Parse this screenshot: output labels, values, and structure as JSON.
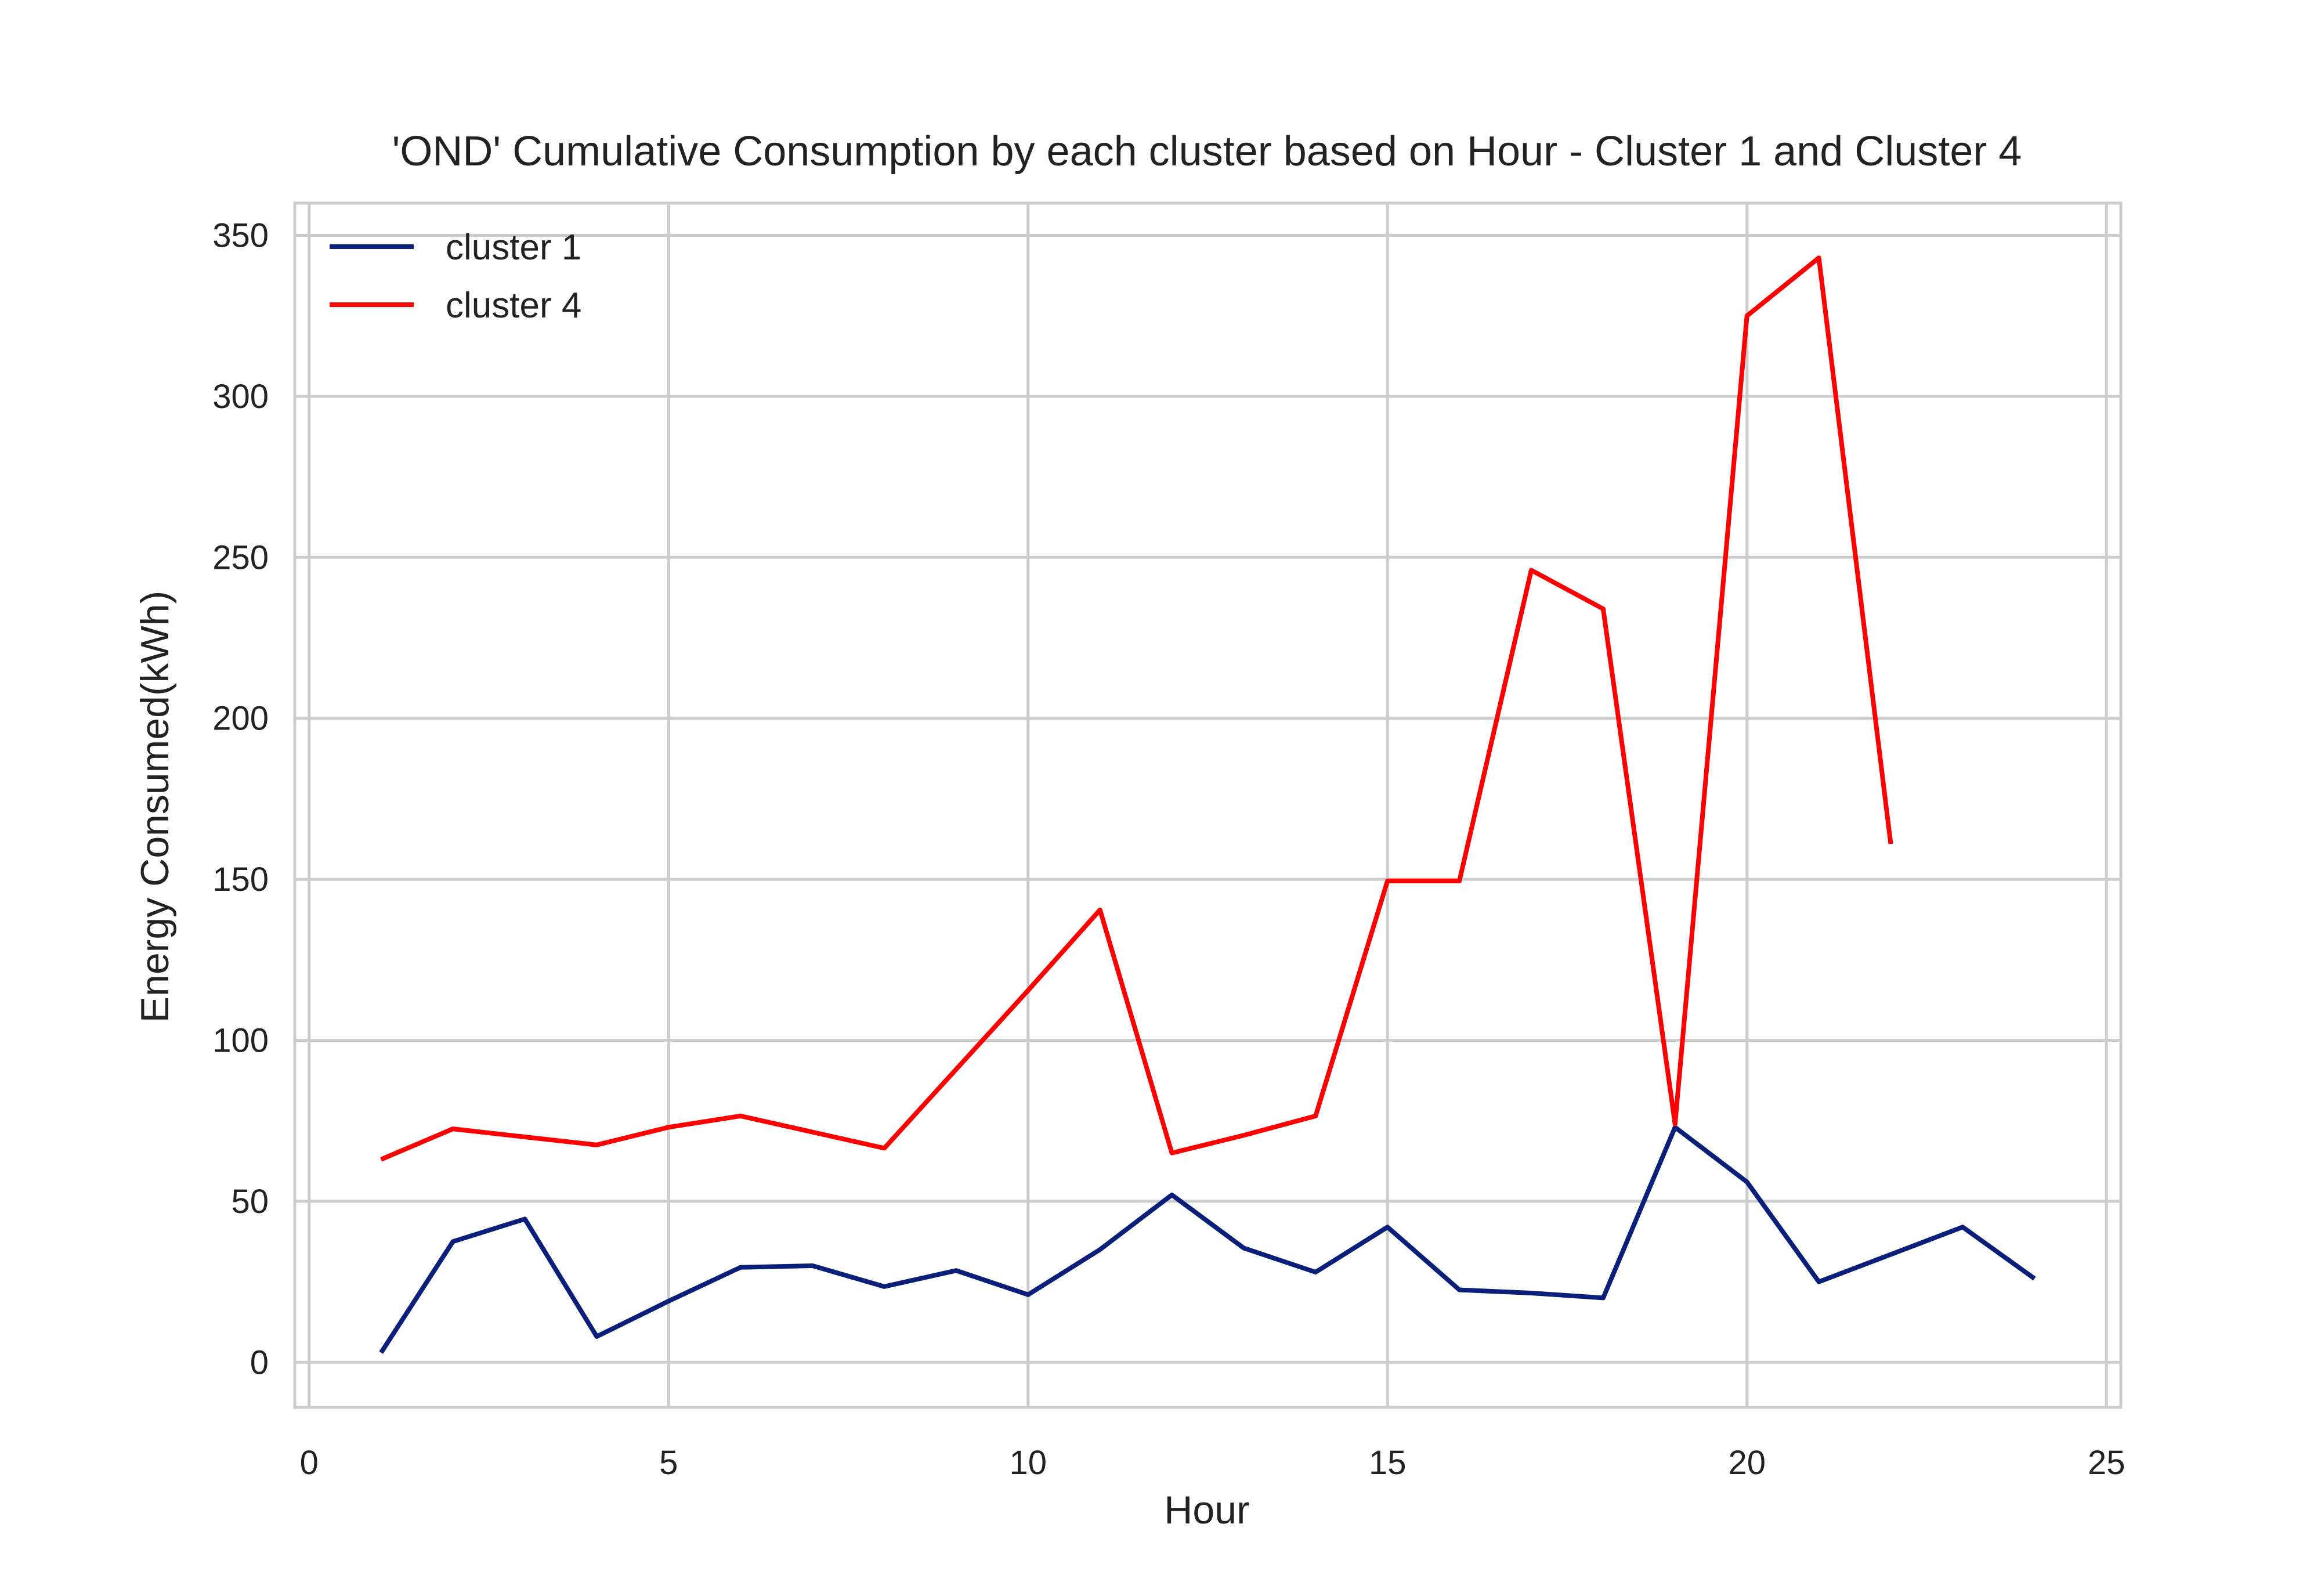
{
  "chart_data": {
    "type": "line",
    "title": "'OND' Cumulative Consumption by each cluster based on Hour - Cluster 1 and Cluster 4",
    "xlabel": "Hour",
    "ylabel": "Energy Consumed(kWh)",
    "xlim": [
      -0.2,
      25.2
    ],
    "ylim": [
      -14,
      360
    ],
    "xticks": [
      0,
      5,
      10,
      15,
      20,
      25
    ],
    "yticks": [
      0,
      50,
      100,
      150,
      200,
      250,
      300,
      350
    ],
    "xtick_labels": [
      "0",
      "5",
      "10",
      "15",
      "20",
      "25"
    ],
    "ytick_labels": [
      "0",
      "50",
      "100",
      "150",
      "200",
      "250",
      "300",
      "350"
    ],
    "grid": true,
    "legend_position": "top-left",
    "series": [
      {
        "name": "cluster 1",
        "color": "#0a1f7a",
        "x": [
          1,
          2,
          3,
          4,
          5,
          6,
          7,
          8,
          9,
          10,
          11,
          12,
          13,
          14,
          15,
          16,
          17,
          18,
          19,
          20,
          21,
          22,
          23,
          24
        ],
        "y": [
          3,
          37.5,
          44.5,
          8,
          19,
          29.5,
          30,
          23.5,
          28.5,
          21,
          35,
          52,
          35.5,
          28,
          42,
          22.5,
          21.5,
          20,
          73,
          56,
          25,
          33.5,
          42,
          26
        ]
      },
      {
        "name": "cluster 4",
        "color": "#ff0000",
        "x": [
          1,
          2,
          3,
          4,
          5,
          6,
          7,
          8,
          9,
          10,
          11,
          12,
          13,
          14,
          15,
          16,
          17,
          18,
          19,
          20,
          21,
          22
        ],
        "y": [
          63,
          72.5,
          70,
          67.5,
          73,
          76.5,
          71.5,
          66.5,
          91,
          115.5,
          140.5,
          65,
          70.5,
          76.5,
          149.5,
          149.5,
          246,
          234,
          74,
          325,
          343,
          161
        ]
      }
    ]
  }
}
